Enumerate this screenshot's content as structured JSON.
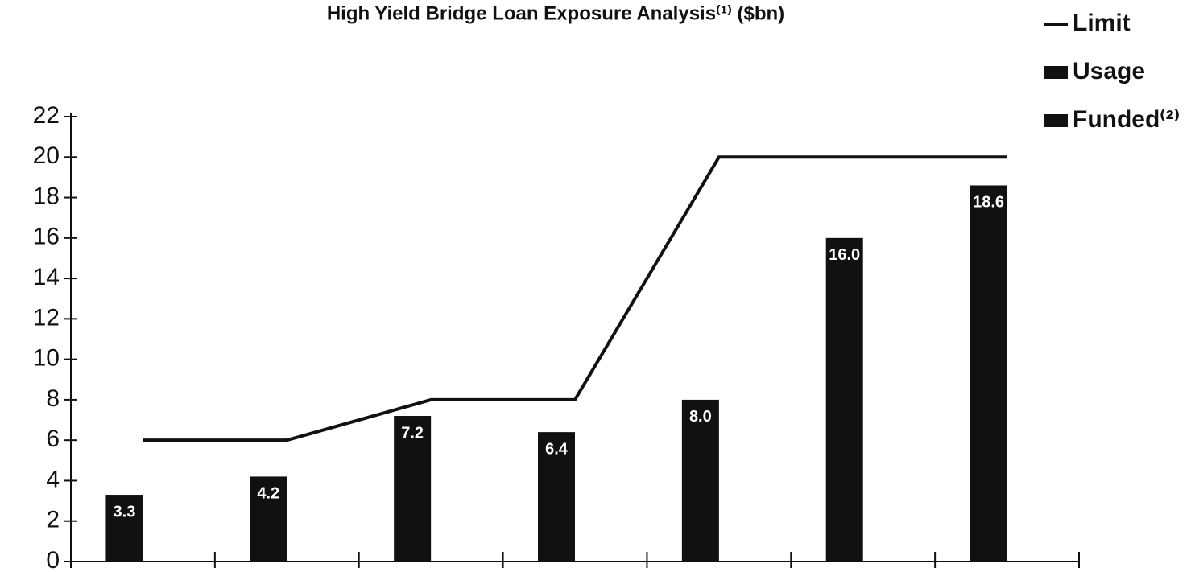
{
  "chart_data": {
    "type": "bar",
    "title": "High Yield Bridge Loan Exposure Analysis⁽¹⁾ ($bn)",
    "categories": [
      null,
      null,
      null,
      null,
      null,
      null,
      null
    ],
    "series": [
      {
        "name": "Limit",
        "type": "line",
        "color": "#111111",
        "values": [
          6,
          6,
          8,
          8,
          20,
          20,
          20
        ]
      },
      {
        "name": "Usage",
        "type": "bar",
        "color": "#111111",
        "values": [
          3.3,
          4.2,
          7.2,
          6.4,
          8.0,
          16.0,
          18.6
        ],
        "value_labels": [
          "3.3",
          "4.2",
          "7.2",
          "6.4",
          "8.0",
          "16.0",
          "18.6"
        ]
      },
      {
        "name": "Funded⁽²⁾",
        "type": "bar",
        "color": "#111111",
        "values": [
          null,
          null,
          null,
          null,
          null,
          null,
          null
        ]
      }
    ],
    "ylim": [
      0,
      22
    ],
    "yticks": [
      0,
      2,
      4,
      6,
      8,
      10,
      12,
      14,
      16,
      18,
      20,
      22
    ],
    "grid": false
  }
}
